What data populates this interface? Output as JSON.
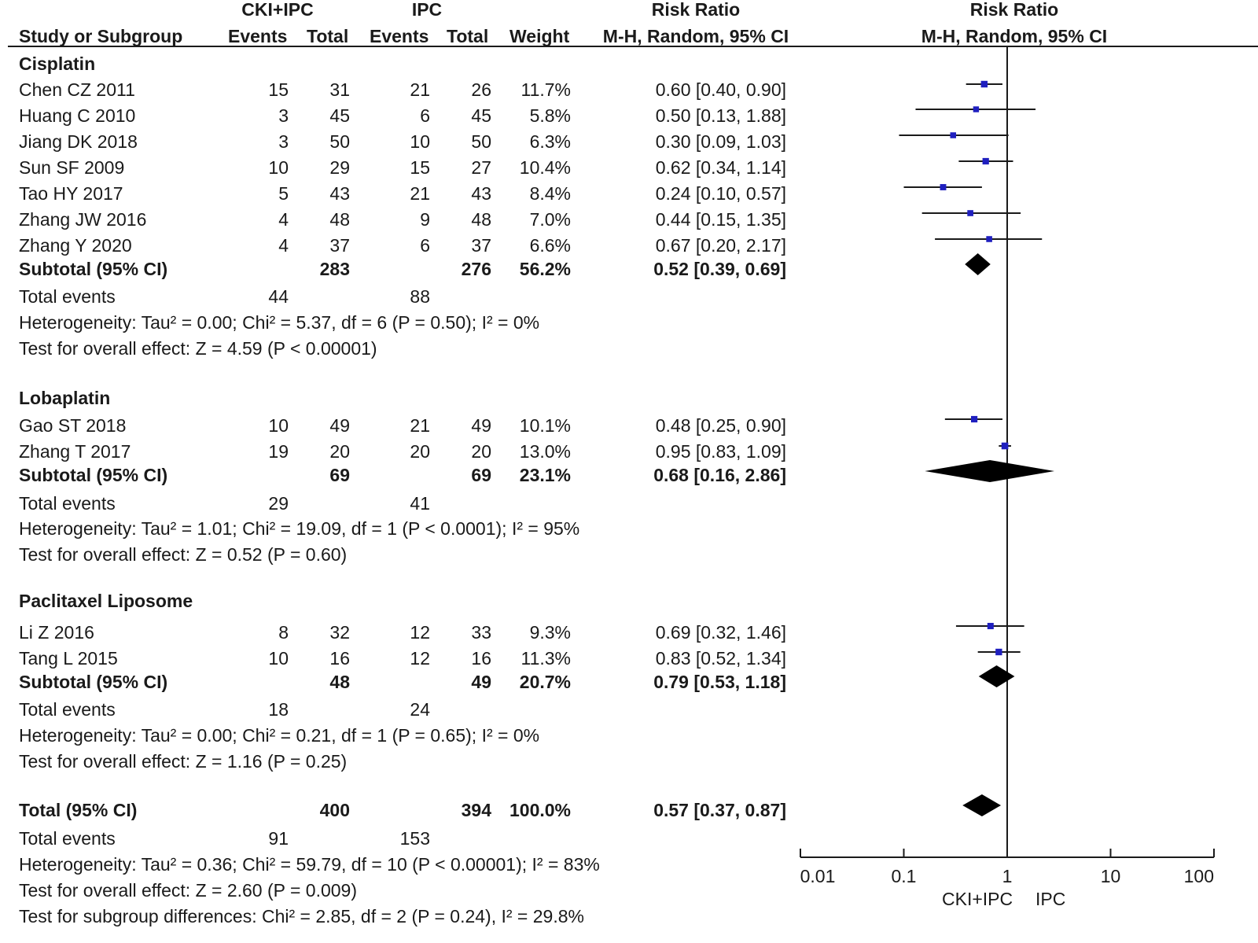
{
  "header": {
    "group1": "CKI+IPC",
    "group2": "IPC",
    "rr_col": "Risk Ratio",
    "rr_plot": "Risk Ratio",
    "study_col": "Study or Subgroup",
    "events1": "Events",
    "total1": "Total",
    "events2": "Events",
    "total2": "Total",
    "weight": "Weight",
    "method_col": "M-H, Random, 95% CI",
    "method_plot": "M-H, Random, 95% CI"
  },
  "subgroups": [
    {
      "name": "Cisplatin",
      "studies": [
        {
          "study": "Chen CZ 2011",
          "e1": "15",
          "t1": "31",
          "e2": "21",
          "t2": "26",
          "weight": "11.7%",
          "ci": "0.60 [0.40, 0.90]"
        },
        {
          "study": "Huang C 2010",
          "e1": "3",
          "t1": "45",
          "e2": "6",
          "t2": "45",
          "weight": "5.8%",
          "ci": "0.50 [0.13, 1.88]"
        },
        {
          "study": "Jiang DK 2018",
          "e1": "3",
          "t1": "50",
          "e2": "10",
          "t2": "50",
          "weight": "6.3%",
          "ci": "0.30 [0.09, 1.03]"
        },
        {
          "study": "Sun SF 2009",
          "e1": "10",
          "t1": "29",
          "e2": "15",
          "t2": "27",
          "weight": "10.4%",
          "ci": "0.62 [0.34, 1.14]"
        },
        {
          "study": "Tao HY 2017",
          "e1": "5",
          "t1": "43",
          "e2": "21",
          "t2": "43",
          "weight": "8.4%",
          "ci": "0.24 [0.10, 0.57]"
        },
        {
          "study": "Zhang JW 2016",
          "e1": "4",
          "t1": "48",
          "e2": "9",
          "t2": "48",
          "weight": "7.0%",
          "ci": "0.44 [0.15, 1.35]"
        },
        {
          "study": "Zhang Y 2020",
          "e1": "4",
          "t1": "37",
          "e2": "6",
          "t2": "37",
          "weight": "6.6%",
          "ci": "0.67 [0.20, 2.17]"
        }
      ],
      "subtotal": {
        "label": "Subtotal (95% CI)",
        "t1": "283",
        "t2": "276",
        "weight": "56.2%",
        "ci": "0.52 [0.39, 0.69]"
      },
      "events": {
        "label": "Total events",
        "e1": "44",
        "e2": "88"
      },
      "heterogeneity": "Heterogeneity: Tau² = 0.00; Chi² = 5.37, df = 6 (P = 0.50); I² = 0%",
      "overall": "Test for overall effect: Z = 4.59 (P < 0.00001)"
    },
    {
      "name": "Lobaplatin",
      "studies": [
        {
          "study": "Gao ST 2018",
          "e1": "10",
          "t1": "49",
          "e2": "21",
          "t2": "49",
          "weight": "10.1%",
          "ci": "0.48 [0.25, 0.90]"
        },
        {
          "study": "Zhang T 2017",
          "e1": "19",
          "t1": "20",
          "e2": "20",
          "t2": "20",
          "weight": "13.0%",
          "ci": "0.95 [0.83, 1.09]"
        }
      ],
      "subtotal": {
        "label": "Subtotal (95% CI)",
        "t1": "69",
        "t2": "69",
        "weight": "23.1%",
        "ci": "0.68 [0.16, 2.86]"
      },
      "events": {
        "label": "Total events",
        "e1": "29",
        "e2": "41"
      },
      "heterogeneity": "Heterogeneity: Tau² = 1.01; Chi² = 19.09, df = 1 (P < 0.0001); I² = 95%",
      "overall": "Test for overall effect: Z = 0.52 (P = 0.60)"
    },
    {
      "name": "Paclitaxel Liposome",
      "studies": [
        {
          "study": "Li Z 2016",
          "e1": "8",
          "t1": "32",
          "e2": "12",
          "t2": "33",
          "weight": "9.3%",
          "ci": "0.69 [0.32, 1.46]"
        },
        {
          "study": "Tang L 2015",
          "e1": "10",
          "t1": "16",
          "e2": "12",
          "t2": "16",
          "weight": "11.3%",
          "ci": "0.83 [0.52, 1.34]"
        }
      ],
      "subtotal": {
        "label": "Subtotal (95% CI)",
        "t1": "48",
        "t2": "49",
        "weight": "20.7%",
        "ci": "0.79 [0.53, 1.18]"
      },
      "events": {
        "label": "Total events",
        "e1": "18",
        "e2": "24"
      },
      "heterogeneity": "Heterogeneity: Tau² = 0.00; Chi² = 0.21, df = 1 (P = 0.65); I² = 0%",
      "overall": "Test for overall effect: Z = 1.16 (P = 0.25)"
    }
  ],
  "total": {
    "label": "Total (95% CI)",
    "t1": "400",
    "t2": "394",
    "weight": "100.0%",
    "ci": "0.57 [0.37, 0.87]",
    "events": {
      "label": "Total events",
      "e1": "91",
      "e2": "153"
    },
    "heterogeneity": "Heterogeneity: Tau² = 0.36; Chi² = 59.79, df = 10 (P < 0.00001); I² = 83%",
    "overall": "Test for overall effect: Z = 2.60 (P = 0.009)",
    "subgroup_diff": "Test for subgroup differences: Chi² = 2.85, df = 2 (P = 0.24), I² = 29.8%"
  },
  "colors": {
    "square": "#1f1fbf",
    "line": "#1a1a1a"
  },
  "chart_data": {
    "type": "forest",
    "title": "Risk Ratio",
    "xlabel": "M-H, Random, 95% CI",
    "x_scale": "log",
    "xlim": [
      0.01,
      100
    ],
    "x_ticks": [
      "0.01",
      "0.1",
      "1",
      "10",
      "100"
    ],
    "x_tick_values": [
      0.01,
      0.1,
      1,
      10,
      100
    ],
    "favours_left": "CKI+IPC",
    "favours_right": "IPC",
    "studies": [
      {
        "label": "Chen CZ 2011",
        "rr": 0.6,
        "lo": 0.4,
        "hi": 0.9,
        "weight": 11.7
      },
      {
        "label": "Huang C 2010",
        "rr": 0.5,
        "lo": 0.13,
        "hi": 1.88,
        "weight": 5.8
      },
      {
        "label": "Jiang DK 2018",
        "rr": 0.3,
        "lo": 0.09,
        "hi": 1.03,
        "weight": 6.3
      },
      {
        "label": "Sun SF 2009",
        "rr": 0.62,
        "lo": 0.34,
        "hi": 1.14,
        "weight": 10.4
      },
      {
        "label": "Tao HY 2017",
        "rr": 0.24,
        "lo": 0.1,
        "hi": 0.57,
        "weight": 8.4
      },
      {
        "label": "Zhang JW 2016",
        "rr": 0.44,
        "lo": 0.15,
        "hi": 1.35,
        "weight": 7.0
      },
      {
        "label": "Zhang Y 2020",
        "rr": 0.67,
        "lo": 0.2,
        "hi": 2.17,
        "weight": 6.6
      },
      {
        "label": "Gao ST 2018",
        "rr": 0.48,
        "lo": 0.25,
        "hi": 0.9,
        "weight": 10.1
      },
      {
        "label": "Zhang T 2017",
        "rr": 0.95,
        "lo": 0.83,
        "hi": 1.09,
        "weight": 13.0
      },
      {
        "label": "Li Z 2016",
        "rr": 0.69,
        "lo": 0.32,
        "hi": 1.46,
        "weight": 9.3
      },
      {
        "label": "Tang L 2015",
        "rr": 0.83,
        "lo": 0.52,
        "hi": 1.34,
        "weight": 11.3
      }
    ],
    "pooled": [
      {
        "label": "Cisplatin subtotal",
        "rr": 0.52,
        "lo": 0.39,
        "hi": 0.69
      },
      {
        "label": "Lobaplatin subtotal",
        "rr": 0.68,
        "lo": 0.16,
        "hi": 2.86
      },
      {
        "label": "Paclitaxel Liposome subtotal",
        "rr": 0.79,
        "lo": 0.53,
        "hi": 1.18
      },
      {
        "label": "Total",
        "rr": 0.57,
        "lo": 0.37,
        "hi": 0.87
      }
    ]
  }
}
